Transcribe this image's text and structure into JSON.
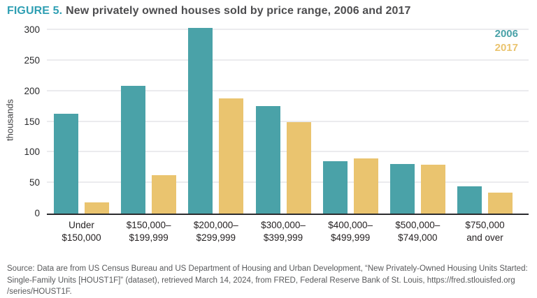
{
  "title": {
    "prefix": "FIGURE 5.",
    "text": "New privately owned houses sold by price range, 2006 and 2017"
  },
  "chart_data": {
    "type": "bar",
    "title": "New privately owned houses sold by price range, 2006 and 2017",
    "categories": [
      "Under\n$150,000",
      "$150,000–\n$199,999",
      "$200,000–\n$299,999",
      "$300,000–\n$399,999",
      "$400,000–\n$499,999",
      "$500,000–\n$749,000",
      "$750,000\nand over"
    ],
    "series": [
      {
        "name": "2006",
        "color": "#4aa2a8",
        "values": [
          163,
          209,
          303,
          176,
          86,
          81,
          44
        ]
      },
      {
        "name": "2017",
        "color": "#eac46f",
        "values": [
          18,
          63,
          188,
          149,
          90,
          80,
          34
        ]
      }
    ],
    "xlabel": "",
    "ylabel": "thousands",
    "yticks": [
      0,
      50,
      100,
      150,
      200,
      250,
      300
    ],
    "ylim": [
      0,
      308
    ],
    "grid": true,
    "legend_position": "top-right"
  },
  "source": {
    "lines": [
      "Source: Data are from US Census Bureau and US Department of Housing and Urban Development, “New Privately-Owned Housing Units Started:",
      "Single-Family Units [HOUST1F]” (dataset), retrieved March 14, 2024, from FRED, Federal Reserve Bank of St. Louis, https://fred.stlouisfed.org",
      "/series/HOUST1F."
    ]
  },
  "colors": {
    "accent_teal": "#2f9fb3",
    "bar_2006": "#4aa2a8",
    "bar_2017": "#eac46f",
    "title_text": "#4d4d4f",
    "gridline": "#ebebee",
    "axis_line": "#2b2b2e",
    "tick_text": "#231f20",
    "source_text": "#58595b"
  }
}
